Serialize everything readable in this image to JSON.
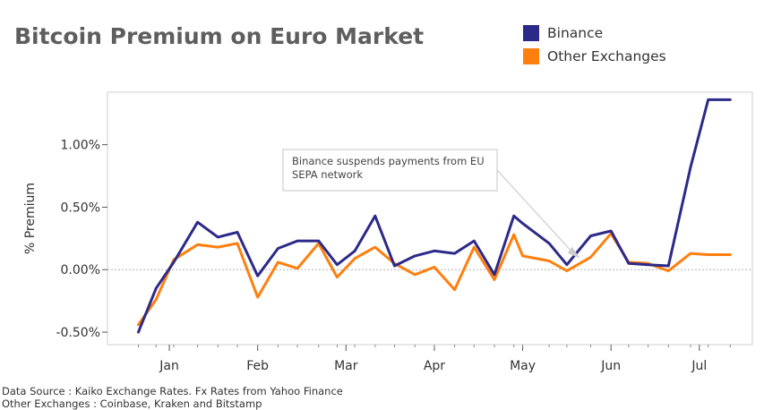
{
  "chart_data": {
    "type": "line",
    "title": "Bitcoin Premium on Euro Market",
    "ylabel": "% Premium",
    "xlabel": "",
    "ylim": [
      -0.6,
      1.42
    ],
    "y_ticks": [
      -0.5,
      0.0,
      0.5,
      1.0
    ],
    "y_tick_labels": [
      "-0.50%",
      "0.00%",
      "0.50%",
      "1.00%"
    ],
    "x_range": [
      -0.7,
      6.6
    ],
    "month_positions": [
      0,
      1,
      2,
      3,
      4,
      5,
      6
    ],
    "month_labels": [
      "Jan",
      "Feb",
      "Mar",
      "Apr",
      "May",
      "Jun",
      "Jul"
    ],
    "x": [
      -0.35,
      -0.15,
      0.05,
      0.32,
      0.55,
      0.77,
      1.0,
      1.23,
      1.45,
      1.69,
      1.9,
      2.1,
      2.33,
      2.55,
      2.78,
      3.0,
      3.23,
      3.45,
      3.68,
      3.9,
      4.0,
      4.3,
      4.5,
      4.77,
      5.0,
      5.2,
      5.42,
      5.65,
      5.9,
      6.1,
      6.35
    ],
    "series": [
      {
        "name": "Binance",
        "color": "#2c2a89",
        "values": [
          -0.5,
          -0.15,
          0.06,
          0.38,
          0.26,
          0.3,
          -0.05,
          0.17,
          0.23,
          0.23,
          0.04,
          0.15,
          0.43,
          0.03,
          0.11,
          0.15,
          0.13,
          0.23,
          -0.04,
          0.43,
          0.37,
          0.21,
          0.04,
          0.27,
          0.31,
          0.05,
          0.04,
          0.03,
          0.82,
          1.36,
          1.36
        ]
      },
      {
        "name": "Other Exchanges",
        "color": "#ff7f0e",
        "values": [
          -0.44,
          -0.24,
          0.08,
          0.2,
          0.18,
          0.21,
          -0.22,
          0.06,
          0.01,
          0.21,
          -0.06,
          0.09,
          0.18,
          0.05,
          -0.04,
          0.02,
          -0.16,
          0.18,
          -0.08,
          0.28,
          0.11,
          0.07,
          -0.01,
          0.1,
          0.29,
          0.06,
          0.05,
          -0.01,
          0.13,
          0.12,
          0.12
        ]
      }
    ],
    "annotation": {
      "text_lines": [
        "Binance suspends payments from EU",
        "SEPA network"
      ],
      "target_x": 4.65,
      "target_y": 0.09
    },
    "grid": false,
    "zero_line": true,
    "legend_position": "top-right"
  },
  "footer": {
    "source": "Data Source : Kaiko Exchange Rates. Fx Rates from Yahoo Finance",
    "other_exchanges": "Other Exchanges : Coinbase, Kraken and Bitstamp"
  }
}
